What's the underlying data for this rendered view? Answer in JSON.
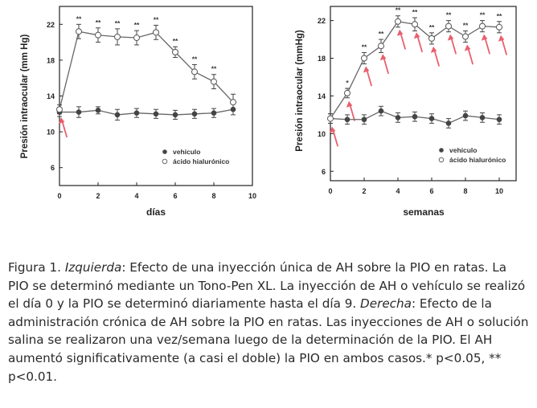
{
  "chart_data": [
    {
      "type": "line",
      "xlabel": "días",
      "ylabel": "Presión intraocular (mm Hg)",
      "xlim": [
        0,
        10
      ],
      "ylim": [
        4,
        24
      ],
      "x_ticks": [
        "0",
        "2",
        "4",
        "6",
        "8",
        "10"
      ],
      "y_ticks": [
        "6",
        "10",
        "14",
        "18",
        "22"
      ],
      "legend_position": "lower-right",
      "series": [
        {
          "name": "vehículo",
          "marker": "filled",
          "x": [
            0,
            1,
            2,
            3,
            4,
            5,
            6,
            7,
            8,
            9
          ],
          "y": [
            12.2,
            12.2,
            12.4,
            11.9,
            12.1,
            12.0,
            11.9,
            12.0,
            12.1,
            12.5
          ],
          "err": [
            0.5,
            0.6,
            0.4,
            0.6,
            0.5,
            0.5,
            0.5,
            0.5,
            0.5,
            0.6
          ]
        },
        {
          "name": "ácido hialurónico",
          "marker": "open",
          "x": [
            0,
            1,
            2,
            3,
            4,
            5,
            6,
            7,
            8,
            9
          ],
          "y": [
            12.5,
            21.2,
            20.8,
            20.6,
            20.5,
            21.1,
            18.9,
            16.7,
            15.6,
            13.3
          ],
          "err": [
            0.5,
            0.8,
            0.8,
            0.9,
            0.8,
            0.8,
            0.6,
            0.8,
            0.8,
            0.9
          ],
          "significance": [
            "",
            "**",
            "**",
            "**",
            "**",
            "**",
            "**",
            "**",
            "**",
            ""
          ]
        }
      ],
      "injection_arrows_at_x": [
        0
      ]
    },
    {
      "type": "line",
      "xlabel": "semanas",
      "ylabel": "Presión intraocular (mmHg)",
      "xlim": [
        0,
        11
      ],
      "ylim": [
        5,
        23.5
      ],
      "x_ticks": [
        "0",
        "2",
        "4",
        "6",
        "8",
        "10"
      ],
      "y_ticks": [
        "6",
        "10",
        "14",
        "18",
        "22"
      ],
      "legend_position": "lower-right",
      "series": [
        {
          "name": "vehículo",
          "marker": "filled",
          "x": [
            0,
            1,
            2,
            3,
            4,
            5,
            6,
            7,
            8,
            9,
            10
          ],
          "y": [
            11.6,
            11.5,
            11.5,
            12.4,
            11.7,
            11.8,
            11.6,
            11.1,
            11.9,
            11.7,
            11.5
          ],
          "err": [
            0.5,
            0.5,
            0.5,
            0.5,
            0.5,
            0.5,
            0.5,
            0.5,
            0.5,
            0.5,
            0.5
          ]
        },
        {
          "name": "ácido hialurónico",
          "marker": "open",
          "x": [
            0,
            1,
            2,
            3,
            4,
            5,
            6,
            7,
            8,
            9,
            10
          ],
          "y": [
            11.6,
            14.3,
            18.0,
            19.3,
            21.9,
            21.6,
            20.1,
            21.4,
            20.3,
            21.4,
            21.3
          ],
          "err": [
            0.5,
            0.5,
            0.6,
            0.7,
            0.6,
            0.7,
            0.6,
            0.6,
            0.6,
            0.6,
            0.6
          ],
          "significance": [
            "",
            "*",
            "**",
            "**",
            "**",
            "**",
            "**",
            "**",
            "**",
            "**",
            "**"
          ]
        }
      ],
      "injection_arrows_at_x": [
        0,
        1,
        2,
        3,
        4,
        5,
        6,
        7,
        8,
        9,
        10
      ]
    }
  ],
  "caption": {
    "label": "Figura 1.",
    "left_tag": "Izquierda",
    "left_text": ": Efecto de una inyección única de AH sobre la PIO en ratas. La PIO se determinó mediante un Tono-Pen XL. La inyección de AH o vehículo se realizó el día 0 y la PIO se determinó diariamente hasta el día 9.",
    "right_tag": "Derecha",
    "right_text": ": Efecto de la administración crónica de AH sobre la PIO en ratas. Las inyecciones de AH o solución salina se realizaron una vez/semana luego de la determinación de la PIO. El AH aumentó significativamente (a casi el doble) la PIO en ambos casos.* p<0.05, ** p<0.01."
  },
  "colors": {
    "axis": "#222222",
    "line": "#666666",
    "arrow": "#e8606e",
    "marker_filled": "#444444"
  }
}
